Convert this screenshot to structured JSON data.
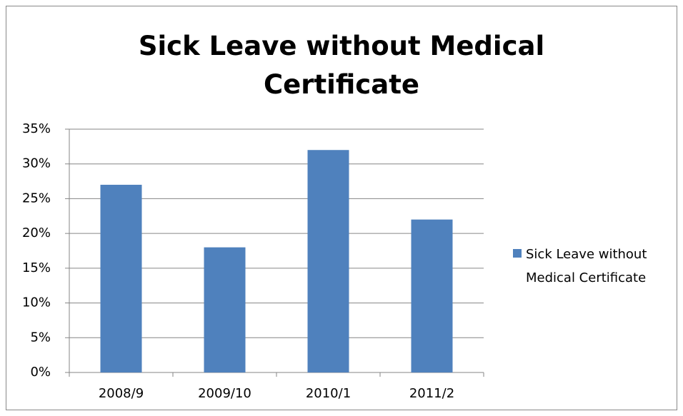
{
  "chart_data": {
    "type": "bar",
    "title": "Sick Leave without Medical Certificate",
    "categories": [
      "2008/9",
      "2009/10",
      "2010/1",
      "2011/2"
    ],
    "series": [
      {
        "name": "Sick Leave without Medical Certificate",
        "color": "#4f81bd",
        "values": [
          27,
          18,
          32,
          22
        ]
      }
    ],
    "ylim": [
      0,
      35
    ],
    "yticks": [
      {
        "value": 0,
        "label": "0%"
      },
      {
        "value": 5,
        "label": "5%"
      },
      {
        "value": 10,
        "label": "10%"
      },
      {
        "value": 15,
        "label": "15%"
      },
      {
        "value": 20,
        "label": "20%"
      },
      {
        "value": 25,
        "label": "25%"
      },
      {
        "value": 30,
        "label": "30%"
      },
      {
        "value": 35,
        "label": "35%"
      }
    ],
    "grid": true,
    "legend": "right"
  }
}
